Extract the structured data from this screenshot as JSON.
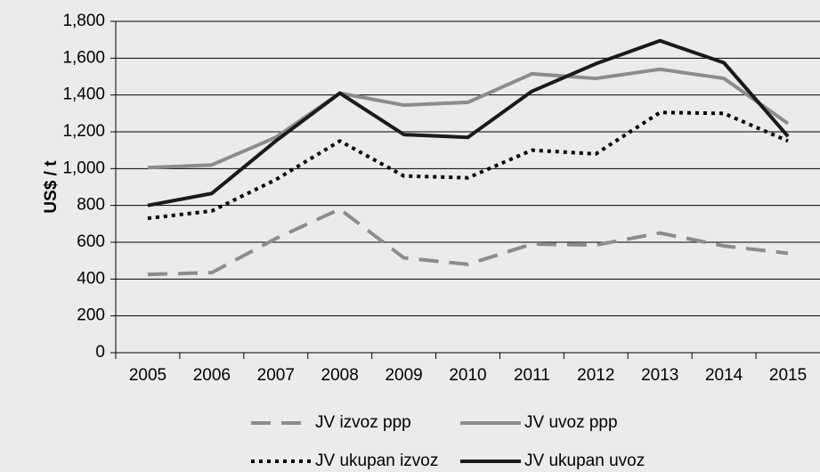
{
  "chart_data": {
    "type": "line",
    "y_label": "US$ / t",
    "categories": [
      "2005",
      "2006",
      "2007",
      "2008",
      "2009",
      "2010",
      "2011",
      "2012",
      "2013",
      "2014",
      "2015"
    ],
    "series": [
      {
        "name": "JV izvoz ppp",
        "color": "#8c8c8c",
        "dash": "dashed",
        "values": [
          425,
          435,
          620,
          780,
          515,
          480,
          590,
          585,
          650,
          580,
          540
        ]
      },
      {
        "name": "JV uvoz ppp",
        "color": "#8c8c8c",
        "dash": "solid",
        "values": [
          1005,
          1020,
          1170,
          1410,
          1345,
          1360,
          1515,
          1490,
          1540,
          1490,
          1245
        ]
      },
      {
        "name": "JV ukupan izvoz",
        "color": "#000000",
        "dash": "dotted",
        "values": [
          730,
          770,
          940,
          1150,
          960,
          950,
          1100,
          1080,
          1305,
          1300,
          1150
        ]
      },
      {
        "name": "JV ukupan uvoz",
        "color": "#1a1a1a",
        "dash": "solid",
        "values": [
          800,
          865,
          1150,
          1410,
          1185,
          1170,
          1420,
          1570,
          1695,
          1575,
          1175
        ]
      }
    ],
    "ylim": [
      0,
      1800
    ],
    "yticks": [
      0,
      200,
      400,
      600,
      800,
      {
        "value": 1000,
        "label": "1,000"
      },
      {
        "value": 1200,
        "label": "1,200"
      },
      {
        "value": 1400,
        "label": "1,400"
      },
      {
        "value": 1600,
        "label": "1,600"
      },
      {
        "value": 1800,
        "label": "1,800"
      }
    ],
    "grid": true
  }
}
